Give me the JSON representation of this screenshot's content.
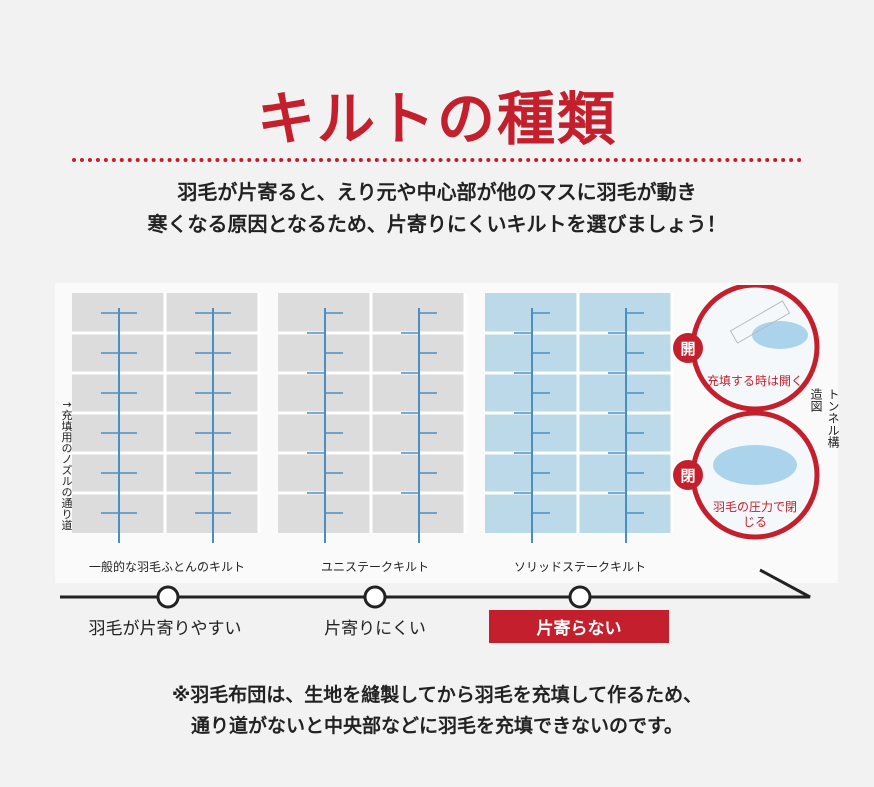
{
  "title": "キルトの種類",
  "subtitle": [
    "羽毛が片寄ると、えり元や中心部が他のマスに羽毛が動き",
    "寒くなる原因となるため、片寄りにくいキルトを選びましょう！"
  ],
  "diagram": {
    "nozzle_label": "↑充填用のノズルの通り道",
    "quilts": [
      {
        "name": "一般的な羽毛ふとんのキルト",
        "rating": "羽毛が片寄りやすい"
      },
      {
        "name": "ユニステークキルト",
        "rating": "片寄りにくい"
      },
      {
        "name": "ソリッドステークキルト",
        "rating": "片寄らない"
      }
    ],
    "tunnel_label": "トンネル構造図",
    "open_badge": "開",
    "open_text": "充填する時は開く",
    "close_badge": "閉",
    "close_text": "羽毛の圧力で閉じる"
  },
  "note": [
    "※羽毛布団は、生地を縫製してから羽毛を充填して作るため、",
    "通り道がないと中央部などに羽毛を充填できないのです。"
  ],
  "colors": {
    "accent": "#c31f2c",
    "grid_gray": "#dcdcdc",
    "grid_blue": "#bcd9ea",
    "arrow": "#4a8fc4"
  }
}
